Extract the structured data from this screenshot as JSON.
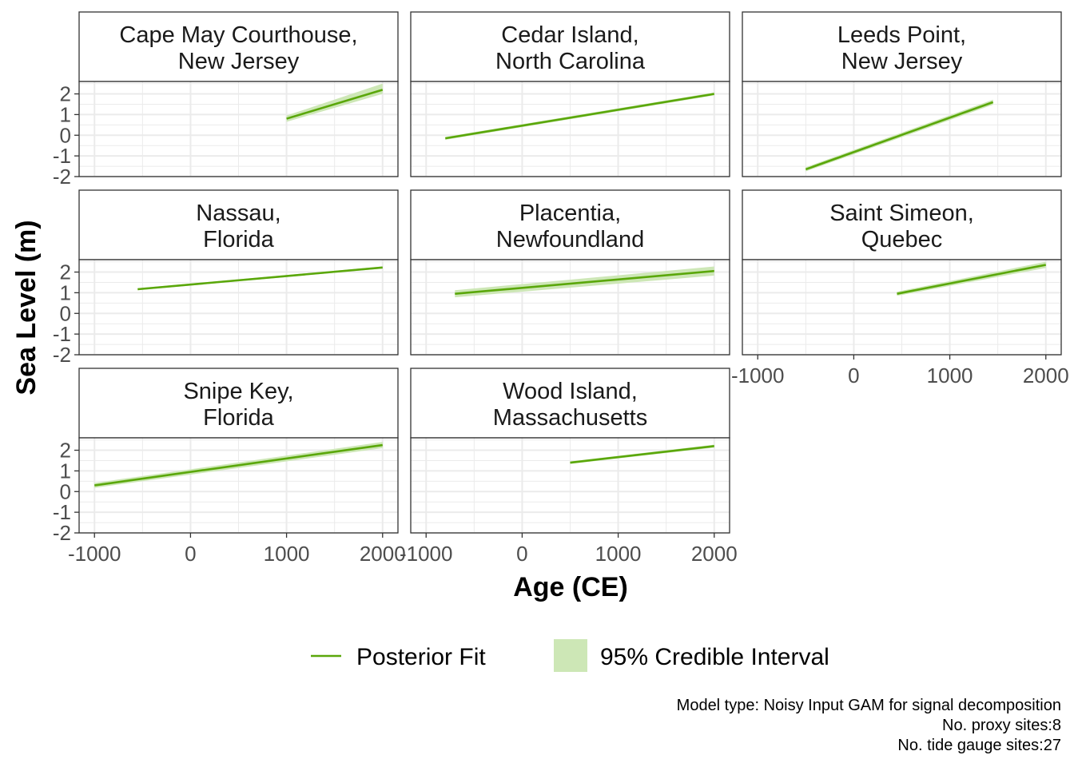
{
  "chart_data": {
    "type": "line",
    "xlabel": "Age (CE)",
    "ylabel": "Sea Level (m)",
    "xlim": [
      -1160,
      2160
    ],
    "ylim": [
      -2,
      2.6
    ],
    "x_ticks": [
      -1000,
      0,
      1000,
      2000
    ],
    "x_tick_labels": [
      "-1000",
      "0",
      "1000",
      "2000"
    ],
    "y_ticks": [
      -2,
      -1,
      0,
      1,
      2
    ],
    "y_tick_labels": [
      "-2",
      "-1",
      "0",
      "1",
      "2"
    ],
    "grid": true,
    "colors": {
      "fit": "#5aa70a",
      "interval": "#cde7b6"
    },
    "legend": {
      "placement": "bottom",
      "entries": [
        {
          "label": "Posterior Fit",
          "kind": "line"
        },
        {
          "label": "95% Credible Interval",
          "kind": "fill"
        }
      ]
    },
    "caption": [
      "Model type: Noisy Input GAM for signal decomposition",
      "No. proxy sites:8",
      "No. tide gauge sites:27"
    ],
    "panels": [
      {
        "title": [
          "Cape May Courthouse,",
          "New Jersey"
        ],
        "x": [
          1000,
          2000
        ],
        "fit": [
          0.8,
          2.2
        ],
        "lower": [
          0.65,
          2.0
        ],
        "upper": [
          0.95,
          2.5
        ]
      },
      {
        "title": [
          "Cedar Island,",
          "North Carolina"
        ],
        "x": [
          -800,
          2000
        ],
        "fit": [
          -0.15,
          2.0
        ],
        "lower": [
          -0.22,
          1.93
        ],
        "upper": [
          -0.08,
          2.07
        ]
      },
      {
        "title": [
          "Leeds Point,",
          "New Jersey"
        ],
        "x": [
          -500,
          1450
        ],
        "fit": [
          -1.65,
          1.6
        ],
        "lower": [
          -1.75,
          1.48
        ],
        "upper": [
          -1.55,
          1.72
        ]
      },
      {
        "title": [
          "Nassau,",
          "Florida"
        ],
        "x": [
          -550,
          2000
        ],
        "fit": [
          1.17,
          2.22
        ],
        "lower": [
          1.12,
          2.17
        ],
        "upper": [
          1.22,
          2.27
        ]
      },
      {
        "title": [
          "Placentia,",
          "Newfoundland"
        ],
        "x": [
          -700,
          2000
        ],
        "fit": [
          0.95,
          2.05
        ],
        "lower": [
          0.78,
          1.83
        ],
        "upper": [
          1.12,
          2.27
        ]
      },
      {
        "title": [
          "Saint Simeon,",
          "Quebec"
        ],
        "x": [
          450,
          2000
        ],
        "fit": [
          0.95,
          2.35
        ],
        "lower": [
          0.85,
          2.2
        ],
        "upper": [
          1.05,
          2.5
        ]
      },
      {
        "title": [
          "Snipe Key,",
          "Florida"
        ],
        "x": [
          -1000,
          2000
        ],
        "fit": [
          0.3,
          2.25
        ],
        "lower": [
          0.18,
          2.1
        ],
        "upper": [
          0.42,
          2.4
        ]
      },
      {
        "title": [
          "Wood Island,",
          "Massachusetts"
        ],
        "x": [
          500,
          2000
        ],
        "fit": [
          1.4,
          2.2
        ],
        "lower": [
          1.34,
          2.13
        ],
        "upper": [
          1.46,
          2.27
        ]
      }
    ]
  }
}
